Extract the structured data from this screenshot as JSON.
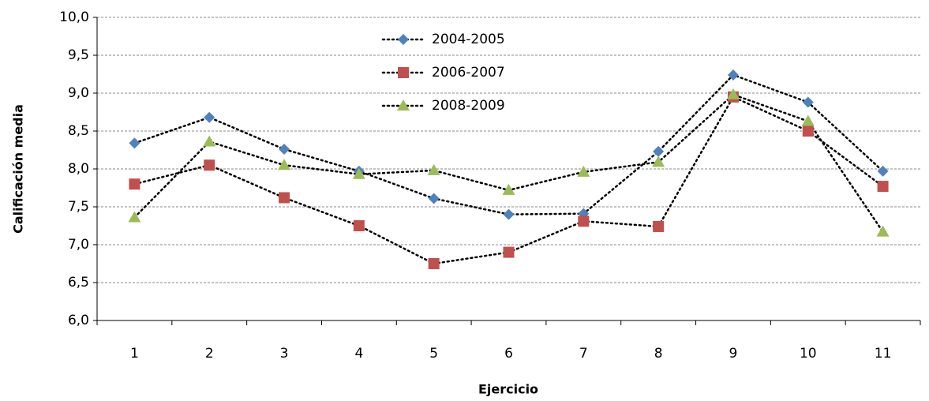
{
  "chart_data": {
    "type": "line",
    "x_label": "Ejercicio",
    "y_label": "Calificación media",
    "categories": [
      "1",
      "2",
      "3",
      "4",
      "5",
      "6",
      "7",
      "8",
      "9",
      "10",
      "11"
    ],
    "series": [
      {
        "name": "2004-2005",
        "color": "#4f81bd",
        "marker": "diamond",
        "values": [
          8.34,
          8.68,
          8.26,
          7.97,
          7.61,
          7.4,
          7.41,
          8.23,
          9.24,
          8.88,
          7.97
        ]
      },
      {
        "name": "2006-2007",
        "color": "#c0504d",
        "marker": "square",
        "values": [
          7.8,
          8.05,
          7.62,
          7.25,
          6.75,
          6.9,
          7.31,
          7.24,
          8.95,
          8.5,
          7.77
        ]
      },
      {
        "name": "2008-2009",
        "color": "#9bbb59",
        "marker": "triangle",
        "values": [
          7.36,
          8.36,
          8.05,
          7.93,
          7.98,
          7.72,
          7.96,
          8.09,
          8.98,
          8.63,
          7.17
        ]
      }
    ],
    "ylim": [
      6,
      10
    ],
    "yticks": [
      {
        "value": 6,
        "label": "6,0"
      },
      {
        "value": 6.5,
        "label": "6,5"
      },
      {
        "value": 7,
        "label": "7,0"
      },
      {
        "value": 7.5,
        "label": "7,5"
      },
      {
        "value": 8,
        "label": "8,0"
      },
      {
        "value": 8.5,
        "label": "8,5"
      },
      {
        "value": 9,
        "label": "9,0"
      },
      {
        "value": 9.5,
        "label": "9,5"
      },
      {
        "value": 10,
        "label": "10,0"
      }
    ],
    "grid": true,
    "legend": "top"
  }
}
